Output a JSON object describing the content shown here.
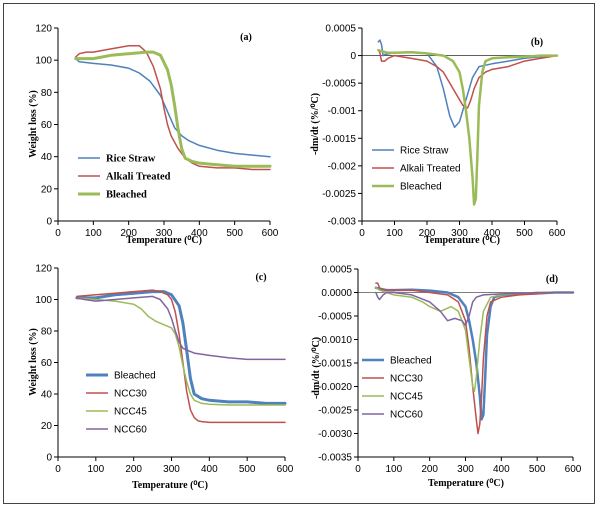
{
  "chart_data": [
    {
      "type": "line",
      "panel_label": "(a)",
      "xlabel": "Temperature (⁰C)",
      "ylabel": "Weight loss (%)",
      "xlim": [
        0,
        600
      ],
      "ylim": [
        0,
        120
      ],
      "xticks": [
        "0",
        "100",
        "200",
        "300",
        "400",
        "500",
        "600"
      ],
      "yticks": [
        "0",
        "20",
        "40",
        "60",
        "80",
        "100",
        "120"
      ],
      "legend": "bottom-left",
      "legend_style": "serif-bold",
      "series": [
        {
          "name": "Rice Straw",
          "color": "#4f81bd",
          "width": 1.5,
          "x": [
            50,
            60,
            100,
            150,
            200,
            230,
            260,
            290,
            310,
            330,
            350,
            370,
            400,
            450,
            500,
            550,
            600
          ],
          "y": [
            101,
            99,
            98,
            97,
            95,
            92,
            87,
            78,
            68,
            58,
            53,
            50,
            47,
            44,
            42,
            41,
            40
          ]
        },
        {
          "name": "Alkali Treated",
          "color": "#c0504d",
          "width": 1.5,
          "x": [
            50,
            60,
            80,
            100,
            150,
            200,
            230,
            250,
            270,
            290,
            300,
            310,
            320,
            340,
            360,
            380,
            400,
            450,
            500,
            550,
            600
          ],
          "y": [
            102,
            104,
            105,
            105,
            107,
            109,
            109,
            105,
            96,
            82,
            70,
            60,
            53,
            45,
            39,
            36,
            34,
            33,
            33,
            32,
            32
          ]
        },
        {
          "name": "Bleached",
          "color": "#9bbb59",
          "width": 3,
          "x": [
            50,
            100,
            150,
            200,
            250,
            270,
            290,
            310,
            320,
            330,
            340,
            350,
            360,
            380,
            400,
            450,
            500,
            550,
            600
          ],
          "y": [
            101,
            101,
            103,
            104,
            105,
            105,
            103,
            94,
            85,
            72,
            57,
            45,
            39,
            37,
            36,
            35,
            34,
            34,
            34
          ]
        }
      ]
    },
    {
      "type": "line",
      "panel_label": "(b)",
      "xlabel": "Temperature (⁰C)",
      "ylabel": "-dm/dt (%/⁰C)",
      "xlim": [
        0,
        600
      ],
      "ylim": [
        -0.003,
        0.0005
      ],
      "xticks": [
        "0",
        "100",
        "200",
        "300",
        "400",
        "500",
        "600"
      ],
      "yticks": [
        "0.0005",
        "0",
        "-0.0005",
        "-0.001",
        "-0.0015",
        "-0.002",
        "-0.0025",
        "-0.003"
      ],
      "legend": "bottom-left",
      "legend_style": "sans",
      "series": [
        {
          "name": "Rice Straw",
          "color": "#4f81bd",
          "width": 1.5,
          "x": [
            50,
            55,
            60,
            65,
            70,
            100,
            150,
            200,
            230,
            250,
            270,
            285,
            300,
            320,
            340,
            360,
            400,
            450,
            500,
            550,
            600
          ],
          "y": [
            0.00025,
            0.00028,
            0.0002,
            0.0,
            2e-05,
            5e-05,
            7e-05,
            4e-05,
            -0.0002,
            -0.0006,
            -0.0011,
            -0.0013,
            -0.0012,
            -0.0008,
            -0.0004,
            -0.0002,
            -0.00015,
            -0.0001,
            -5e-05,
            -2e-05,
            0.0
          ]
        },
        {
          "name": "Alkali Treated",
          "color": "#c0504d",
          "width": 1.5,
          "x": [
            50,
            55,
            60,
            70,
            80,
            100,
            150,
            200,
            230,
            250,
            270,
            290,
            310,
            325,
            335,
            345,
            360,
            380,
            400,
            450,
            500,
            550,
            600
          ],
          "y": [
            0.0001,
            5e-05,
            -0.0001,
            -0.0001,
            -5e-05,
            0.0,
            -5e-05,
            -0.0001,
            -0.0002,
            -0.0003,
            -0.0005,
            -0.0007,
            -0.0009,
            -0.00095,
            -0.0008,
            -0.0006,
            -0.0004,
            -0.0003,
            -0.00025,
            -0.0002,
            -0.0001,
            -5e-05,
            0.0
          ]
        },
        {
          "name": "Bleached",
          "color": "#9bbb59",
          "width": 2.5,
          "x": [
            50,
            60,
            80,
            100,
            150,
            200,
            250,
            280,
            300,
            310,
            320,
            330,
            340,
            345,
            350,
            355,
            360,
            370,
            380,
            400,
            450,
            500,
            550,
            600
          ],
          "y": [
            0.0001,
            8e-05,
            5e-05,
            5e-05,
            6e-05,
            4e-05,
            0.0,
            -0.0001,
            -0.0003,
            -0.0006,
            -0.001,
            -0.0015,
            -0.0022,
            -0.0027,
            -0.0026,
            -0.0018,
            -0.0009,
            -0.0003,
            -0.0001,
            -5e-05,
            -3e-05,
            -2e-05,
            0.0,
            0.0
          ]
        }
      ]
    },
    {
      "type": "line",
      "panel_label": "(c)",
      "xlabel": "Temperature (⁰C)",
      "ylabel": "Weight loss (%)",
      "xlim": [
        0,
        600
      ],
      "ylim": [
        0,
        120
      ],
      "xticks": [
        "0",
        "100",
        "200",
        "300",
        "400",
        "500",
        "600"
      ],
      "yticks": [
        "0",
        "20",
        "40",
        "60",
        "80",
        "100",
        "120"
      ],
      "legend": "bottom-left",
      "legend_style": "sans",
      "series": [
        {
          "name": "Bleached",
          "color": "#4f81bd",
          "width": 3,
          "x": [
            50,
            100,
            150,
            200,
            250,
            280,
            300,
            320,
            330,
            340,
            350,
            360,
            380,
            400,
            450,
            500,
            550,
            600
          ],
          "y": [
            101,
            101,
            103,
            104,
            105,
            105,
            103,
            96,
            85,
            68,
            50,
            40,
            37,
            36,
            35,
            35,
            34,
            34
          ]
        },
        {
          "name": "NCC30",
          "color": "#c0504d",
          "width": 1.5,
          "x": [
            50,
            100,
            150,
            200,
            250,
            270,
            290,
            300,
            310,
            320,
            330,
            340,
            350,
            360,
            370,
            380,
            400,
            450,
            500,
            550,
            600
          ],
          "y": [
            102,
            103,
            104,
            105,
            106,
            105,
            103,
            100,
            92,
            78,
            60,
            42,
            30,
            25,
            23,
            22.5,
            22,
            22,
            22,
            22,
            22
          ]
        },
        {
          "name": "NCC45",
          "color": "#9bbb59",
          "width": 1.5,
          "x": [
            50,
            100,
            150,
            200,
            220,
            240,
            260,
            280,
            300,
            310,
            320,
            330,
            340,
            350,
            360,
            380,
            400,
            450,
            500,
            550,
            600
          ],
          "y": [
            101,
            100,
            99,
            97,
            94,
            89,
            86,
            84,
            82,
            78,
            70,
            58,
            48,
            40,
            36,
            34,
            33.5,
            33,
            33,
            33,
            33
          ]
        },
        {
          "name": "NCC60",
          "color": "#8064a2",
          "width": 1.5,
          "x": [
            50,
            70,
            100,
            150,
            200,
            250,
            270,
            290,
            300,
            310,
            320,
            330,
            340,
            360,
            400,
            450,
            500,
            550,
            600
          ],
          "y": [
            101,
            100,
            99,
            100,
            101,
            102,
            100,
            94,
            88,
            80,
            73,
            69,
            68,
            66,
            64.5,
            63,
            62,
            62,
            62
          ]
        }
      ]
    },
    {
      "type": "line",
      "panel_label": "(d)",
      "xlabel": "Temperature (⁰C)",
      "ylabel": "-dm/dt (%/⁰C)",
      "xlim": [
        0,
        600
      ],
      "ylim": [
        -0.0035,
        0.0005
      ],
      "xticks": [
        "0",
        "100",
        "200",
        "300",
        "400",
        "500",
        "600"
      ],
      "yticks": [
        "0.0005",
        "0.0000",
        "-0.0005",
        "-0.0010",
        "-0.0015",
        "-0.0020",
        "-0.0025",
        "-0.0030",
        "-0.0035"
      ],
      "legend": "left",
      "legend_style": "sans",
      "series": [
        {
          "name": "Bleached",
          "color": "#4f81bd",
          "width": 2.5,
          "x": [
            50,
            60,
            80,
            100,
            150,
            200,
            250,
            280,
            300,
            310,
            320,
            330,
            340,
            345,
            350,
            355,
            360,
            370,
            380,
            400,
            450,
            500,
            550,
            600
          ],
          "y": [
            0.0001,
            8e-05,
            5e-05,
            5e-05,
            6e-05,
            4e-05,
            0.0,
            -0.0001,
            -0.0003,
            -0.0006,
            -0.001,
            -0.0015,
            -0.0022,
            -0.0027,
            -0.0026,
            -0.0018,
            -0.0009,
            -0.0003,
            -0.0001,
            -5e-05,
            -3e-05,
            -2e-05,
            0.0,
            0.0
          ]
        },
        {
          "name": "NCC30",
          "color": "#c0504d",
          "width": 1.5,
          "x": [
            50,
            55,
            60,
            70,
            100,
            150,
            200,
            250,
            280,
            300,
            310,
            320,
            330,
            335,
            340,
            345,
            350,
            360,
            370,
            400,
            450,
            500,
            550,
            600
          ],
          "y": [
            0.0002,
            0.0002,
            0.0001,
            5e-05,
            5e-05,
            5e-05,
            0.0,
            -5e-05,
            -0.0002,
            -0.0006,
            -0.0012,
            -0.002,
            -0.0027,
            -0.003,
            -0.0028,
            -0.0022,
            -0.0014,
            -0.0005,
            -0.0002,
            -0.0001,
            -5e-05,
            -3e-05,
            0.0,
            0.0
          ]
        },
        {
          "name": "NCC45",
          "color": "#9bbb59",
          "width": 1.5,
          "x": [
            50,
            60,
            80,
            100,
            150,
            180,
            200,
            230,
            260,
            280,
            300,
            310,
            320,
            325,
            330,
            340,
            350,
            370,
            400,
            450,
            500,
            550,
            600
          ],
          "y": [
            0.0001,
            5e-05,
            0.0,
            -5e-05,
            -0.0001,
            -0.0002,
            -0.0003,
            -0.0004,
            -0.0003,
            -0.0004,
            -0.0008,
            -0.0014,
            -0.002,
            -0.0021,
            -0.0018,
            -0.001,
            -0.0004,
            -0.0001,
            -5e-05,
            -2e-05,
            0.0,
            0.0,
            0.0
          ]
        },
        {
          "name": "NCC60",
          "color": "#8064a2",
          "width": 1.5,
          "x": [
            50,
            55,
            60,
            65,
            70,
            80,
            100,
            150,
            200,
            230,
            250,
            270,
            290,
            300,
            310,
            320,
            330,
            350,
            400,
            450,
            500,
            550,
            600
          ],
          "y": [
            0.0,
            -0.0001,
            -0.00015,
            -0.0001,
            -5e-05,
            0.0,
            0.0,
            -5e-05,
            -0.0002,
            -0.0004,
            -0.0006,
            -0.00055,
            -0.0006,
            -0.0007,
            -0.0005,
            -0.0002,
            -0.0001,
            -5e-05,
            -3e-05,
            -2e-05,
            0.0,
            0.0,
            0.0
          ]
        }
      ]
    }
  ]
}
